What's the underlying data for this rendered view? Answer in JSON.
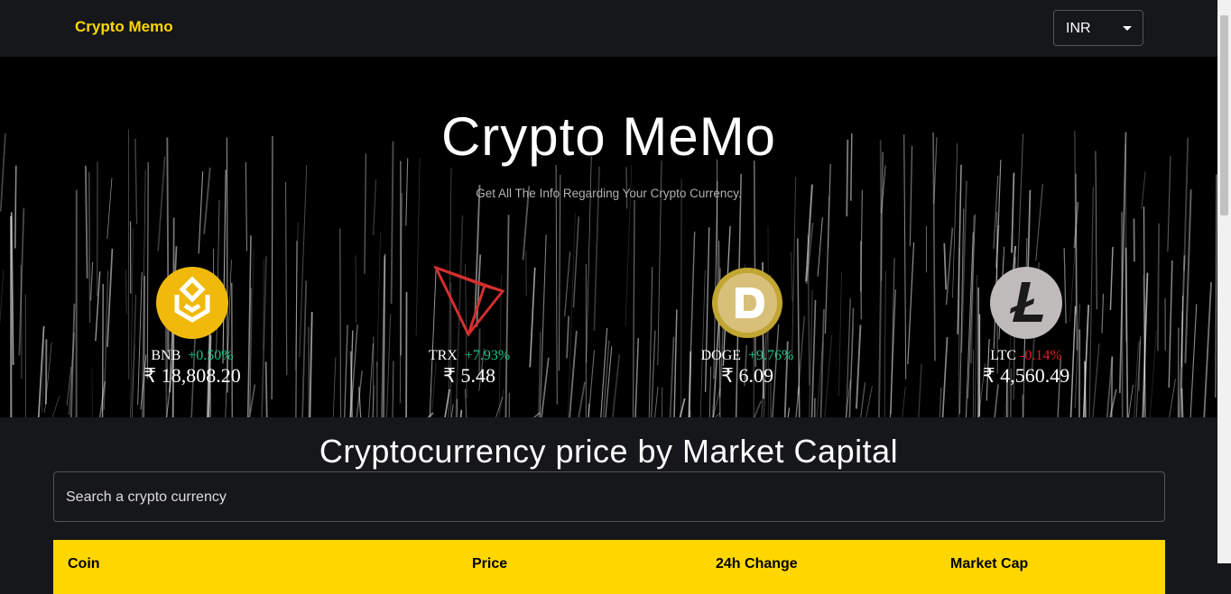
{
  "navbar": {
    "brand": "Crypto Memo",
    "currency": "INR"
  },
  "hero": {
    "title": "Crypto MeMo",
    "subtitle": "Get All The Info Regarding Your Crypto Currency."
  },
  "carousel": [
    {
      "symbol": "BNB",
      "change": "+0.50%",
      "price": "₹ 18,808.20"
    },
    {
      "symbol": "TRX",
      "change": "+7.93%",
      "price": "₹ 5.48"
    },
    {
      "symbol": "DOGE",
      "change": "+9.76%",
      "price": "₹ 6.09"
    },
    {
      "symbol": "LTC",
      "change": "-0.14%",
      "price": "₹ 4,560.49"
    }
  ],
  "section_title": "Cryptocurrency price by Market Capital",
  "search_placeholder": "Search a crypto currency",
  "table": {
    "headers": [
      "Coin",
      "Price",
      "24h Change",
      "Market Cap"
    ]
  }
}
